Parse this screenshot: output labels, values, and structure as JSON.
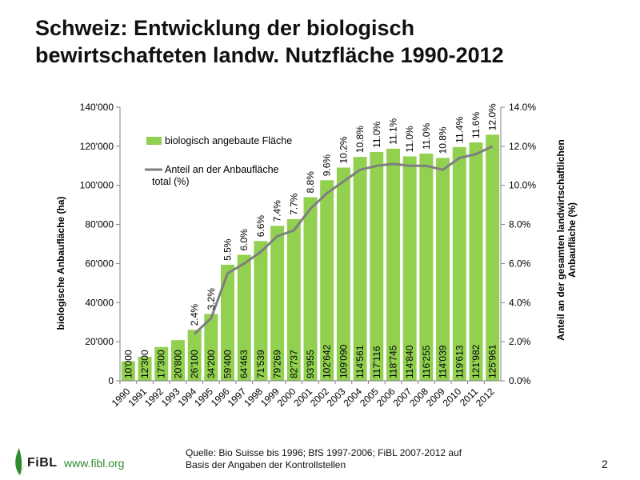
{
  "slide": {
    "title_line1": "Schweiz: Entwicklung der biologisch",
    "title_line2": "bewirtschafteten landw. Nutzfläche 1990-2012",
    "source_line1": "Quelle: Bio Suisse bis 1996; BfS 1997-2006;  FiBL 2007-2012  auf",
    "source_line2": "Basis der Angaben der Kontrollstellen",
    "logo_text": "FiBL",
    "logo_url": "www.fibl.org",
    "page_number": "2"
  },
  "chart_data": {
    "type": "bar",
    "categories": [
      "1990",
      "1991",
      "1992",
      "1993",
      "1994",
      "1995",
      "1996",
      "1997",
      "1998",
      "1999",
      "2000",
      "2001",
      "2002",
      "2003",
      "2004",
      "2005",
      "2006",
      "2007",
      "2008",
      "2009",
      "2010",
      "2011",
      "2012"
    ],
    "series": [
      {
        "name": "biologisch angebaute Fläche",
        "kind": "bar",
        "axis": "left",
        "color": "#92d050",
        "values": [
          10000,
          12300,
          17300,
          20800,
          26100,
          34200,
          59400,
          64463,
          71539,
          79269,
          82737,
          93955,
          102642,
          109090,
          114561,
          117116,
          118745,
          114840,
          116255,
          114039,
          119613,
          121982,
          125961
        ],
        "labels": [
          "10'000",
          "12'300",
          "17'300",
          "20'800",
          "26'100",
          "34'200",
          "59'400",
          "64'463",
          "71'539",
          "79'269",
          "82'737",
          "93'955",
          "102'642",
          "109'090",
          "114'561",
          "117'116",
          "118'745",
          "114'840",
          "116'255",
          "114'039",
          "119'613",
          "121'982",
          "125'961"
        ]
      },
      {
        "name": "Anteil an der  Anbaufläche total (%)",
        "legend_line1": "Anteil an der  Anbaufläche",
        "legend_line2": "total (%)",
        "kind": "line",
        "axis": "right",
        "color": "#7f7f7f",
        "x": [
          "1994",
          "1995",
          "1996",
          "1997",
          "1998",
          "1999",
          "2000",
          "2001",
          "2002",
          "2003",
          "2004",
          "2005",
          "2006",
          "2007",
          "2008",
          "2009",
          "2010",
          "2011",
          "2012"
        ],
        "values": [
          2.4,
          3.2,
          5.5,
          6.0,
          6.6,
          7.4,
          7.7,
          8.8,
          9.6,
          10.2,
          10.8,
          11.0,
          11.1,
          11.0,
          11.0,
          10.8,
          11.4,
          11.6,
          12.0
        ],
        "labels": [
          "2.4%",
          "3.2%",
          "5.5%",
          "6.0%",
          "6.6%",
          "7.4%",
          "7.7%",
          "8.8%",
          "9.6%",
          "10.2%",
          "10.8%",
          "11.0%",
          "11.1%",
          "11.0%",
          "11.0%",
          "10.8%",
          "11.4%",
          "11.6%",
          "12.0%"
        ]
      }
    ],
    "ylabel": "biologische Anbaufläche  (ha)",
    "ylabel_right_line1": "Anteil an der gesamten landwirtschaftlichen",
    "ylabel_right_line2": "Anbaufläche (%)",
    "ylim": [
      0,
      140000
    ],
    "ylim_right": [
      0,
      14
    ],
    "yticks": [
      "0",
      "20'000",
      "40'000",
      "60'000",
      "80'000",
      "100'000",
      "120'000",
      "140'000"
    ],
    "yticks_right": [
      "0.0%",
      "2.0%",
      "4.0%",
      "6.0%",
      "8.0%",
      "10.0%",
      "12.0%",
      "14.0%"
    ],
    "grid": false,
    "legend_position": "top-left inside plot"
  }
}
